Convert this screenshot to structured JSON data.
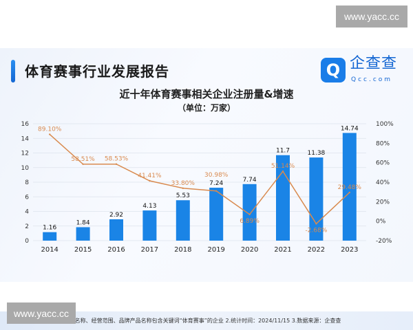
{
  "watermark": "www.yacc.cc",
  "report_title": "体育赛事行业发展报告",
  "logo": {
    "cn": "企查查",
    "en": "Qcc.com",
    "icon": "qcc-logo-icon"
  },
  "note": "数据说明：1.仅统计企业名称、经营范围、品牌产品名称包含关键词“体育赛事”的企业  2.统计时间：2024/11/15   3.数据来源：企查查",
  "chart_data": {
    "type": "bar+line",
    "title": "近十年体育赛事相关企业注册量&增速",
    "subtitle": "（单位：万家）",
    "categories": [
      "2014",
      "2015",
      "2016",
      "2017",
      "2018",
      "2019",
      "2020",
      "2021",
      "2022",
      "2023"
    ],
    "series": [
      {
        "type": "bar",
        "axis": "left",
        "values": [
          1.16,
          1.84,
          2.92,
          4.13,
          5.53,
          7.24,
          7.74,
          11.7,
          11.38,
          14.74
        ],
        "labels": [
          "1.16",
          "1.84",
          "2.92",
          "4.13",
          "5.53",
          "7.24",
          "7.74",
          "11.7",
          "11.38",
          "14.74"
        ],
        "color": "#1a84e6"
      },
      {
        "type": "line",
        "axis": "right",
        "values": [
          89.1,
          58.51,
          58.53,
          41.41,
          33.8,
          30.98,
          6.89,
          51.14,
          -2.68,
          29.48
        ],
        "labels": [
          "89.10%",
          "58.51%",
          "58.53%",
          "41.41%",
          "33.80%",
          "30.98%",
          "6.89%",
          "51.14%",
          "-2.68%",
          "29.48%"
        ],
        "color": "#d98a4e"
      }
    ],
    "y_left": {
      "range": [
        0,
        16
      ],
      "ticks": [
        "0",
        "2",
        "4",
        "6",
        "8",
        "10",
        "12",
        "14",
        "16"
      ]
    },
    "y_right": {
      "range": [
        -20,
        100
      ],
      "ticks": [
        "-20%",
        "0%",
        "20%",
        "40%",
        "60%",
        "80%",
        "100%"
      ]
    },
    "grid": true,
    "legend": "none"
  }
}
